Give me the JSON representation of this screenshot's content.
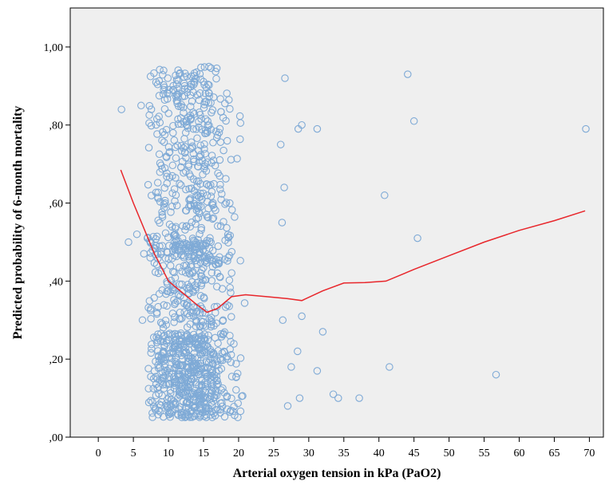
{
  "chart_data": {
    "type": "scatter",
    "xlabel": "Arterial oxygen tension in kPa (PaO2)",
    "ylabel": "Predicted probability of 6-month mortality",
    "xlim": [
      -4,
      72
    ],
    "ylim": [
      0,
      1.1
    ],
    "x_ticks": [
      0,
      5,
      10,
      15,
      20,
      25,
      30,
      35,
      40,
      45,
      50,
      55,
      60,
      65,
      70
    ],
    "x_tick_labels": [
      "0",
      "5",
      "10",
      "15",
      "20",
      "25",
      "30",
      "35",
      "40",
      "45",
      "50",
      "55",
      "60",
      "65",
      "70"
    ],
    "y_ticks": [
      0,
      0.2,
      0.4,
      0.6,
      0.8,
      1.0
    ],
    "y_tick_labels": [
      ",00",
      ",20",
      ",40",
      ",60",
      ",80",
      "1,00"
    ],
    "grid": false,
    "colors": {
      "background": "#efefef",
      "points": "#7faad6",
      "fit_line": "#e8262b"
    },
    "scatter_cluster": {
      "note_visible": false,
      "x_range": [
        7,
        26
      ],
      "x_peak": 13,
      "y_range": [
        0.02,
        0.95
      ],
      "count": 1200
    },
    "scatter_outliers": [
      [
        3.3,
        0.84
      ],
      [
        4.3,
        0.5
      ],
      [
        5.5,
        0.52
      ],
      [
        6.1,
        0.85
      ],
      [
        6.3,
        0.3
      ],
      [
        6.5,
        0.47
      ],
      [
        7.0,
        0.51
      ],
      [
        7.4,
        0.46
      ],
      [
        26.0,
        0.75
      ],
      [
        26.2,
        0.55
      ],
      [
        26.5,
        0.64
      ],
      [
        26.6,
        0.92
      ],
      [
        26.3,
        0.3
      ],
      [
        27.0,
        0.08
      ],
      [
        27.5,
        0.18
      ],
      [
        28.4,
        0.22
      ],
      [
        28.5,
        0.79
      ],
      [
        28.7,
        0.1
      ],
      [
        29.0,
        0.31
      ],
      [
        29.0,
        0.8
      ],
      [
        31.2,
        0.79
      ],
      [
        31.2,
        0.17
      ],
      [
        32.0,
        0.27
      ],
      [
        33.5,
        0.11
      ],
      [
        34.2,
        0.1
      ],
      [
        37.2,
        0.1
      ],
      [
        40.8,
        0.62
      ],
      [
        41.5,
        0.18
      ],
      [
        44.1,
        0.93
      ],
      [
        45.0,
        0.81
      ],
      [
        45.5,
        0.51
      ],
      [
        56.7,
        0.16
      ],
      [
        69.5,
        0.79
      ]
    ],
    "fit_line": {
      "x": [
        3.2,
        5,
        8,
        10,
        12,
        14,
        15.5,
        17,
        19,
        21,
        24,
        27,
        29,
        32,
        35,
        38,
        41,
        45,
        50,
        55,
        60,
        65,
        69.4
      ],
      "y": [
        0.685,
        0.6,
        0.47,
        0.4,
        0.37,
        0.34,
        0.32,
        0.33,
        0.36,
        0.365,
        0.36,
        0.355,
        0.35,
        0.375,
        0.395,
        0.396,
        0.4,
        0.43,
        0.465,
        0.5,
        0.53,
        0.555,
        0.58
      ]
    }
  }
}
